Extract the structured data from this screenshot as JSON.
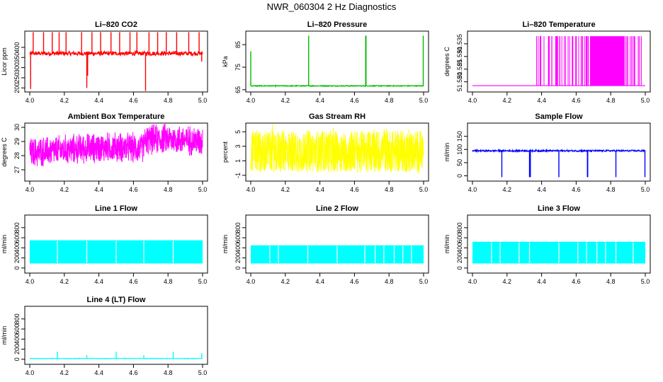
{
  "title": "NWR_060304  2 Hz Diagnostics",
  "chart_data": [
    {
      "id": "co2",
      "type": "line",
      "title": "Li–820 CO2",
      "ylabel": "Licor ppm",
      "color": "#ff0000",
      "x_range": [
        4.0,
        5.0
      ],
      "xticks": [
        "4.0",
        "4.2",
        "4.4",
        "4.6",
        "4.8",
        "5.0"
      ],
      "ylim": [
        180,
        480
      ],
      "yticks": [
        200,
        250,
        300,
        350,
        400
      ],
      "baseline": {
        "center": 370,
        "jitter": 10
      },
      "spikes_up": [
        4.02,
        4.08,
        4.13,
        4.17,
        4.21,
        4.3,
        4.36,
        4.41,
        4.47,
        4.52,
        4.58,
        4.62,
        4.69,
        4.74,
        4.79,
        4.85,
        4.92,
        4.98
      ],
      "spike_up_to": 475,
      "spikes_down": [
        {
          "x": 4.005,
          "to": 195
        },
        {
          "x": 4.33,
          "to": 200
        },
        {
          "x": 4.335,
          "to": 260
        },
        {
          "x": 4.67,
          "to": 185
        },
        {
          "x": 4.995,
          "to": 330
        }
      ]
    },
    {
      "id": "pressure",
      "type": "line",
      "title": "Li–820 Pressure",
      "ylabel": "kPa",
      "color": "#00bb00",
      "x_range": [
        4.0,
        5.0
      ],
      "xticks": [
        "4.0",
        "4.2",
        "4.4",
        "4.6",
        "4.8",
        "5.0"
      ],
      "ylim": [
        64,
        91
      ],
      "yticks": [
        65,
        75,
        85
      ],
      "baseline": {
        "center": 66.7,
        "jitter": 0.2
      },
      "spikes_up": [
        4.0,
        4.335,
        4.665,
        4.667,
        4.998
      ],
      "spike_up_to": 89,
      "first_spike_to": 82
    },
    {
      "id": "temp",
      "type": "line",
      "title": "Li–820 Temperature",
      "ylabel": "degrees C",
      "color": "#ff00ff",
      "x_range": [
        4.0,
        5.0
      ],
      "xticks": [
        "4.0",
        "4.2",
        "4.4",
        "4.6",
        "4.8",
        "5.0"
      ],
      "ylim": [
        51.516,
        51.54
      ],
      "yticks": [
        51.52,
        51.525,
        51.53,
        51.535
      ],
      "ytick_labels": [
        "51.520",
        "51.525",
        "51.530",
        "51.535"
      ],
      "low_level": 51.5185,
      "high_level": 51.538,
      "sparse_region": [
        4.37,
        4.68
      ],
      "dense_region": [
        4.68,
        4.88
      ],
      "tail_region": [
        4.88,
        4.99
      ]
    },
    {
      "id": "ambient",
      "type": "line",
      "title": "Ambient Box Temperature",
      "ylabel": "degrees C",
      "color": "#ff00ff",
      "x_range": [
        4.0,
        5.0
      ],
      "xticks": [
        "4.0",
        "4.2",
        "4.4",
        "4.6",
        "4.8",
        "5.0"
      ],
      "ylim": [
        26.2,
        30.3
      ],
      "yticks": [
        27,
        28,
        29,
        30
      ],
      "trend": [
        [
          4.0,
          28.2
        ],
        [
          4.1,
          28.3
        ],
        [
          4.3,
          28.5
        ],
        [
          4.5,
          28.6
        ],
        [
          4.65,
          28.5
        ],
        [
          4.67,
          29.1
        ],
        [
          4.8,
          29.2
        ],
        [
          5.0,
          29.0
        ]
      ],
      "amplitude": 1.1
    },
    {
      "id": "rh",
      "type": "line",
      "title": "Gas Stream RH",
      "ylabel": "percent",
      "color": "#ffff00",
      "x_range": [
        4.0,
        5.0
      ],
      "xticks": [
        "4.0",
        "4.2",
        "4.4",
        "4.6",
        "4.8",
        "5.0"
      ],
      "ylim": [
        -1.8,
        6.2
      ],
      "yticks": [
        -1,
        1,
        3,
        5
      ],
      "band": [
        -0.6,
        5.2
      ]
    },
    {
      "id": "sample",
      "type": "line",
      "title": "Sample Flow",
      "ylabel": "ml/min",
      "color": "#0000ff",
      "x_range": [
        4.0,
        5.0
      ],
      "xticks": [
        "4.0",
        "4.2",
        "4.4",
        "4.6",
        "4.8",
        "5.0"
      ],
      "ylim": [
        -20,
        200
      ],
      "yticks": [
        0,
        50,
        100,
        150
      ],
      "baseline": {
        "center": 95,
        "jitter": 3
      },
      "dips": [
        4.17,
        4.33,
        4.335,
        4.5,
        4.665,
        4.667,
        4.83,
        4.998
      ],
      "dip_to": -5
    },
    {
      "id": "line1",
      "type": "line",
      "title": "Line 1 Flow",
      "ylabel": "ml/min",
      "color": "#00ffff",
      "x_range": [
        4.0,
        5.0
      ],
      "xticks": [
        "4.0",
        "4.2",
        "4.4",
        "4.6",
        "4.8",
        "5.0"
      ],
      "ylim": [
        -100,
        1050
      ],
      "yticks": [
        0,
        200,
        400,
        600,
        800
      ],
      "band": [
        90,
        550
      ],
      "gaps": [
        4.16,
        4.33,
        4.5,
        4.66,
        4.83
      ]
    },
    {
      "id": "line2",
      "type": "line",
      "title": "Line 2 Flow",
      "ylabel": "ml/min",
      "color": "#00ffff",
      "x_range": [
        4.0,
        5.0
      ],
      "xticks": [
        "4.0",
        "4.2",
        "4.4",
        "4.6",
        "4.8",
        "5.0"
      ],
      "ylim": [
        -100,
        1050
      ],
      "yticks": [
        0,
        200,
        400,
        600,
        800
      ],
      "band": [
        90,
        450
      ],
      "gaps": [
        4.11,
        4.16,
        4.33,
        4.5,
        4.66,
        4.72,
        4.77,
        4.83,
        4.88,
        4.93
      ]
    },
    {
      "id": "line3",
      "type": "line",
      "title": "Line 3 Flow",
      "ylabel": "ml/min",
      "color": "#00ffff",
      "x_range": [
        4.0,
        5.0
      ],
      "xticks": [
        "4.0",
        "4.2",
        "4.4",
        "4.6",
        "4.8",
        "5.0"
      ],
      "ylim": [
        -100,
        1050
      ],
      "yticks": [
        0,
        200,
        400,
        600,
        800
      ],
      "band": [
        90,
        520
      ],
      "gaps": [
        4.11,
        4.16,
        4.27,
        4.33,
        4.5,
        4.61,
        4.66,
        4.72,
        4.77,
        4.83,
        4.93
      ]
    },
    {
      "id": "line4",
      "type": "line",
      "title": "Line 4 (LT) Flow",
      "ylabel": "ml/min",
      "color": "#00ffff",
      "x_range": [
        4.0,
        5.0
      ],
      "xticks": [
        "4.0",
        "4.2",
        "4.4",
        "4.6",
        "4.8",
        "5.0"
      ],
      "ylim": [
        -100,
        1050
      ],
      "yticks": [
        0,
        200,
        400,
        600,
        800
      ],
      "baseline": {
        "center": 15,
        "jitter": 4
      },
      "spikes": [
        {
          "x": 4.16,
          "to": 150
        },
        {
          "x": 4.33,
          "to": 80
        },
        {
          "x": 4.5,
          "to": 150
        },
        {
          "x": 4.66,
          "to": 80
        },
        {
          "x": 4.83,
          "to": 150
        },
        {
          "x": 4.995,
          "to": 120
        }
      ]
    }
  ]
}
